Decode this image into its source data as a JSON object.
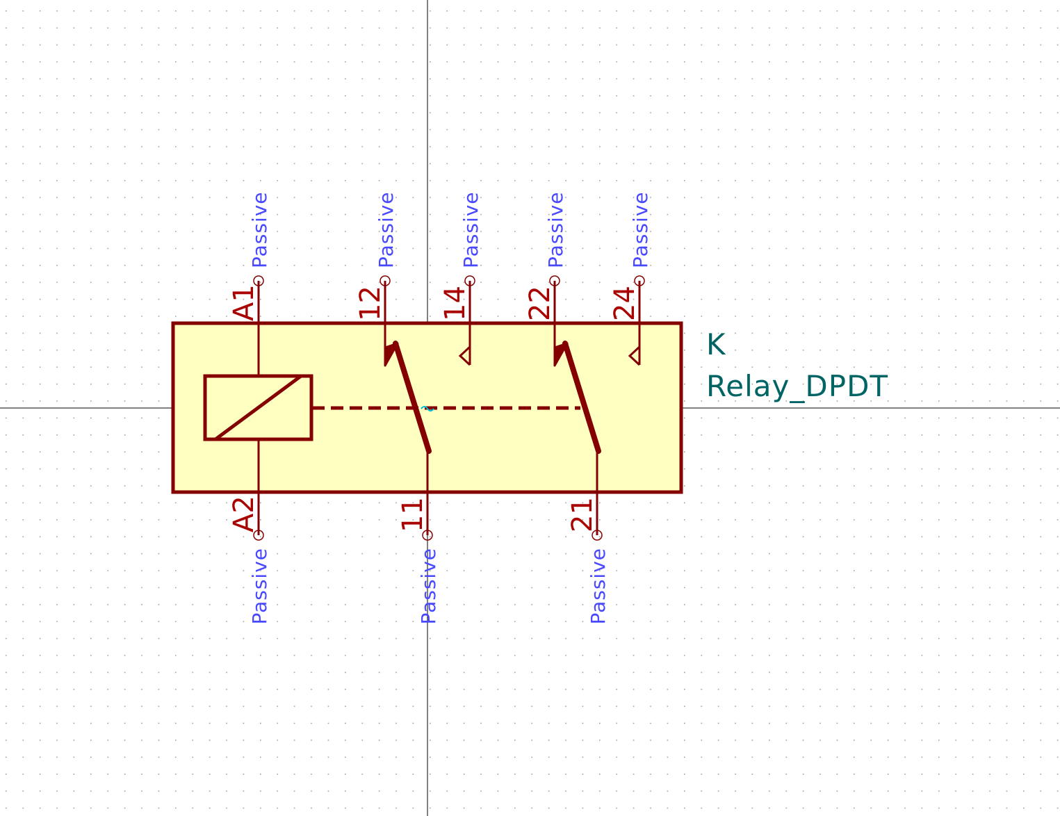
{
  "colors": {
    "background": "#ffffff",
    "grid_dot": "#a0a0a0",
    "axis": "#000000",
    "body_fill": "#ffffc2",
    "outline": "#840000",
    "pin_number": "#a90000",
    "pin_type": "#4848ff",
    "field_text": "#006464",
    "anchor": "#00bcd4"
  },
  "symbol": {
    "reference": "K",
    "value": "Relay_DPDT"
  },
  "pins": {
    "a1": {
      "number": "A1",
      "type": "Passive"
    },
    "a2": {
      "number": "A2",
      "type": "Passive"
    },
    "p11": {
      "number": "11",
      "type": "Passive"
    },
    "p12": {
      "number": "12",
      "type": "Passive"
    },
    "p14": {
      "number": "14",
      "type": "Passive"
    },
    "p21": {
      "number": "21",
      "type": "Passive"
    },
    "p22": {
      "number": "22",
      "type": "Passive"
    },
    "p24": {
      "number": "24",
      "type": "Passive"
    }
  }
}
